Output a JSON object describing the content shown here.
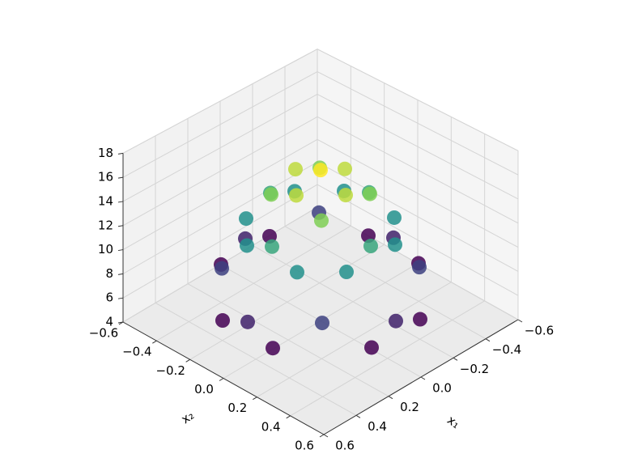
{
  "chart_data": {
    "type": "scatter3d",
    "cmap": "viridis",
    "x_label": "x₁",
    "y_label": "x₂",
    "xlim": [
      -0.6,
      0.6
    ],
    "ylim": [
      -0.6,
      0.6
    ],
    "zlim": [
      4,
      18
    ],
    "xticks": [
      {
        "value": -0.6,
        "label": "−0.6"
      },
      {
        "value": -0.4,
        "label": "−0.4"
      },
      {
        "value": -0.2,
        "label": "−0.2"
      },
      {
        "value": 0,
        "label": "0.0"
      },
      0.2,
      0.4,
      0.6
    ],
    "yticks": [
      {
        "value": -0.6,
        "label": "−0.6"
      },
      {
        "value": -0.4,
        "label": "−0.4"
      },
      {
        "value": -0.2,
        "label": "−0.2"
      },
      {
        "value": 0,
        "label": "0.0"
      },
      0.2,
      0.4,
      0.6
    ],
    "zticks": [
      4,
      6,
      8,
      10,
      12,
      14,
      16,
      18
    ],
    "grid": true,
    "x": [
      -0.45,
      -0.45,
      -0.45,
      -0.3,
      -0.3,
      -0.3,
      -0.3,
      -0.3,
      -0.15,
      -0.15,
      -0.15,
      -0.15,
      -0.15,
      -0.15,
      -0.15,
      0,
      0,
      0,
      0,
      0,
      0,
      0,
      0.15,
      0.15,
      0.15,
      0.15,
      0.15,
      0.15,
      0.15,
      0.3,
      0.3,
      0.3,
      0.3,
      0.3,
      0.45,
      0.45,
      0.45
    ],
    "y": [
      -0.15,
      0,
      0.15,
      -0.3,
      -0.15,
      0,
      0.15,
      0.3,
      -0.45,
      -0.3,
      -0.15,
      0,
      0.15,
      0.3,
      0.45,
      -0.45,
      -0.3,
      -0.15,
      0,
      0.15,
      0.3,
      0.45,
      -0.45,
      -0.3,
      -0.15,
      0,
      0.15,
      0.3,
      0.45,
      -0.3,
      -0.15,
      0,
      0.15,
      0.3,
      -0.15,
      0,
      0.15
    ],
    "z": [
      6.4,
      7.4,
      6.4,
      8.4,
      11.4,
      12.4,
      11.4,
      8.4,
      6.4,
      11.4,
      14.5,
      15.5,
      14.5,
      11.4,
      6.4,
      7.4,
      12.4,
      15.5,
      16.5,
      15.5,
      12.4,
      7.4,
      6.4,
      11.4,
      14.5,
      15.5,
      14.5,
      11.4,
      6.4,
      8.4,
      11.4,
      12.4,
      11.4,
      8.4,
      6.4,
      7.4,
      6.4
    ]
  }
}
